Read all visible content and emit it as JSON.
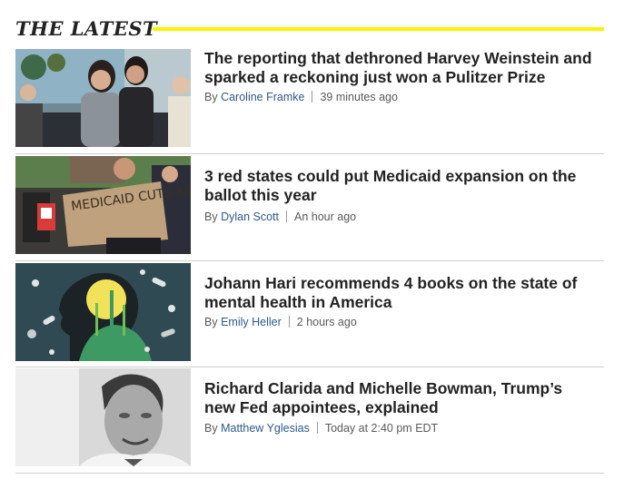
{
  "section": {
    "title": "THE LATEST",
    "accent_color": "#fff200"
  },
  "stories": [
    {
      "headline": "The reporting that dethroned Harvey Weinstein and sparked a reckoning just won a Pulitzer Prize",
      "by": "By",
      "author": "Caroline Framke",
      "time": "39 minutes ago",
      "image": "two-women-at-event-photo"
    },
    {
      "headline": "3 red states could put Medicaid expansion on the ballot this year",
      "by": "By",
      "author": "Dylan Scott",
      "time": "An hour ago",
      "image": "protest-sign-photo",
      "image_text": "MEDICAID CUTS KILL"
    },
    {
      "headline": "Johann Hari recommends 4 books on the state of mental health in America",
      "by": "By",
      "author": "Emily Heller",
      "time": "2 hours ago",
      "image": "head-silhouette-pills-illustration"
    },
    {
      "headline": "Richard Clarida and Michelle Bowman, Trump’s new Fed appointees, explained",
      "by": "By",
      "author": "Matthew Yglesias",
      "time": "Today at 2:40 pm EDT",
      "image": "man-portrait-bw-photo"
    }
  ]
}
